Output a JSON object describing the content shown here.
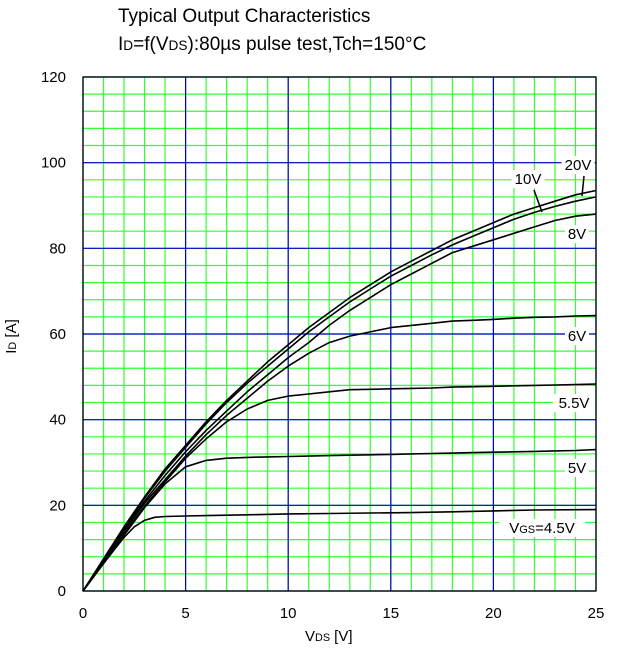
{
  "title": {
    "line1": "Typical Output Characteristics",
    "line2_prefix": "I",
    "line2_sub": "D",
    "line2_mid": "=f(V",
    "line2_sub2": "DS",
    "line2_rest": "):80µs pulse test,Tch=150°C"
  },
  "colors": {
    "minor_grid": "#33ff33",
    "major_grid": "#0000cc",
    "curve": "#000000",
    "frame": "#000000"
  },
  "chart_data": {
    "type": "line",
    "xlabel": {
      "main": "V",
      "sub": "DS",
      "rest": " [V]"
    },
    "ylabel": {
      "main": "I",
      "sub": "D",
      "rest": " [A]"
    },
    "xlim": [
      0,
      25
    ],
    "ylim": [
      0,
      120
    ],
    "x_ticks": [
      "0",
      "5",
      "10",
      "15",
      "20",
      "25"
    ],
    "y_ticks": [
      "0",
      "20",
      "40",
      "60",
      "80",
      "100",
      "120"
    ],
    "grid": true,
    "series": [
      {
        "name": "20V",
        "x": [
          0,
          1,
          2,
          3,
          4,
          5,
          6,
          7,
          8,
          9,
          10,
          11,
          12,
          13,
          14,
          15,
          16,
          17,
          18,
          19,
          20,
          21,
          22,
          23,
          24,
          25
        ],
        "y": [
          0,
          7.5,
          15,
          22,
          28.5,
          34,
          39.5,
          44.5,
          49,
          53.5,
          57.5,
          61.5,
          65,
          68.5,
          71.5,
          74.5,
          77,
          79.5,
          82,
          84,
          86,
          88,
          89.5,
          91,
          92.5,
          93.5
        ]
      },
      {
        "name": "10V",
        "x": [
          0,
          1,
          2,
          3,
          4,
          5,
          6,
          7,
          8,
          9,
          10,
          11,
          12,
          13,
          14,
          15,
          16,
          17,
          18,
          19,
          20,
          21,
          22,
          23,
          24,
          25
        ],
        "y": [
          0,
          7.4,
          14.8,
          21.7,
          28,
          33.5,
          39,
          44,
          48.5,
          52.5,
          56.5,
          60.5,
          64,
          67.5,
          70.5,
          73.5,
          76,
          78.5,
          80.8,
          82.8,
          84.8,
          86.8,
          88.4,
          89.8,
          91,
          92
        ]
      },
      {
        "name": "8V",
        "x": [
          0,
          1,
          2,
          3,
          4,
          5,
          6,
          7,
          8,
          9,
          10,
          11,
          12,
          13,
          14,
          15,
          16,
          17,
          18,
          19,
          20,
          21,
          22,
          23,
          24,
          25
        ],
        "y": [
          0,
          7.2,
          14.5,
          21,
          27,
          32.5,
          37.5,
          42,
          46.5,
          50.5,
          54.5,
          58,
          62,
          65.5,
          68.5,
          71.5,
          74,
          76.5,
          79,
          80.5,
          82,
          83.5,
          85,
          86.5,
          87.5,
          88
        ]
      },
      {
        "name": "6V",
        "x": [
          0,
          1,
          2,
          3,
          4,
          5,
          6,
          7,
          8,
          9,
          10,
          11,
          12,
          13,
          14,
          15,
          16,
          17,
          18,
          19,
          20,
          21,
          22,
          23,
          24,
          25
        ],
        "y": [
          0,
          7,
          14,
          20.5,
          26,
          31.5,
          36.5,
          41,
          45,
          49,
          52.5,
          55.5,
          58,
          59.5,
          60.5,
          61.5,
          62,
          62.5,
          63,
          63.2,
          63.4,
          63.7,
          63.9,
          64,
          64.2,
          64.3
        ]
      },
      {
        "name": "5.5V",
        "x": [
          0,
          1,
          2,
          3,
          4,
          5,
          6,
          7,
          8,
          9,
          10,
          11,
          12,
          13,
          14,
          15,
          16,
          17,
          18,
          19,
          20,
          21,
          22,
          23,
          24,
          25
        ],
        "y": [
          0,
          6.8,
          13.5,
          19.8,
          25.5,
          31,
          35.5,
          39.5,
          42.5,
          44.5,
          45.5,
          46,
          46.5,
          47,
          47.1,
          47.2,
          47.3,
          47.4,
          47.6,
          47.7,
          47.8,
          47.9,
          48,
          48.1,
          48.2,
          48.3
        ]
      },
      {
        "name": "5V",
        "x": [
          0,
          1,
          2,
          3,
          4,
          5,
          6,
          7,
          8,
          9,
          10,
          11,
          12,
          13,
          14,
          15,
          16,
          17,
          18,
          19,
          20,
          21,
          22,
          23,
          24,
          25
        ],
        "y": [
          0,
          6.5,
          13,
          19.5,
          25,
          29,
          30.5,
          31,
          31.2,
          31.3,
          31.4,
          31.5,
          31.6,
          31.7,
          31.8,
          31.9,
          32,
          32.1,
          32.2,
          32.3,
          32.4,
          32.5,
          32.6,
          32.7,
          32.8,
          33
        ]
      },
      {
        "name": "VGS=4.5V",
        "label_main": "V",
        "label_sub": "GS",
        "label_rest": "=4.5V",
        "x": [
          0,
          0.5,
          1,
          1.5,
          2,
          2.5,
          3,
          3.5,
          4,
          5,
          6,
          8,
          10,
          12,
          14,
          16,
          18,
          20,
          22,
          25
        ],
        "y": [
          0,
          3.2,
          6.4,
          9.5,
          12.5,
          15,
          16.5,
          17.2,
          17.4,
          17.5,
          17.6,
          17.8,
          18,
          18.1,
          18.2,
          18.3,
          18.5,
          18.7,
          18.9,
          19
        ]
      }
    ],
    "curve_labels": [
      {
        "text": "20V"
      },
      {
        "text": "10V"
      },
      {
        "text": "8V"
      },
      {
        "text": "6V"
      },
      {
        "text": "5.5V"
      },
      {
        "text": "5V"
      },
      {
        "text": "VGS=4.5V"
      }
    ]
  }
}
